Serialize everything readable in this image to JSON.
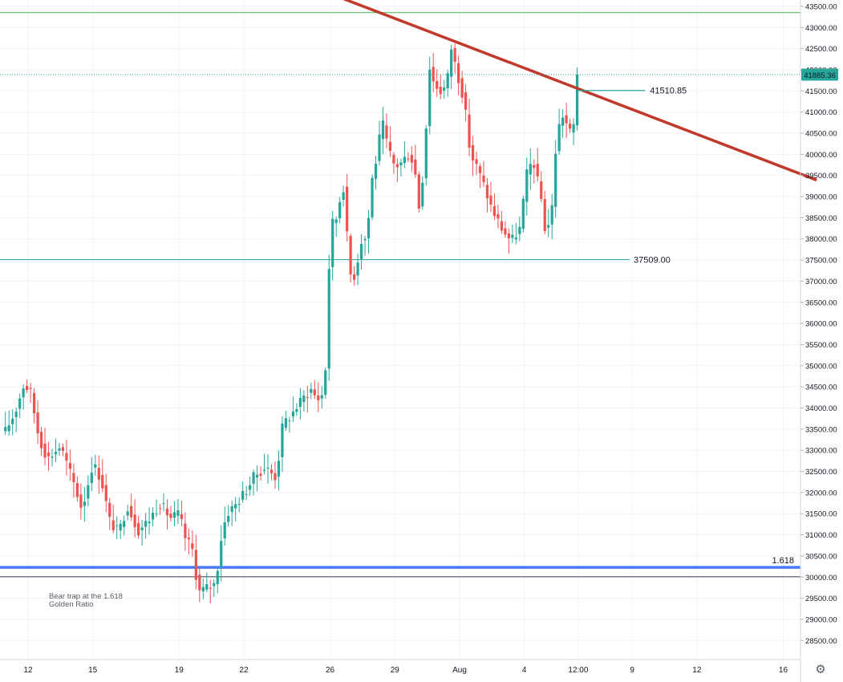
{
  "chart_data": {
    "type": "candlestick",
    "title": "",
    "xlabel": "",
    "ylabel": "",
    "ylim": [
      28050,
      43650
    ],
    "y_ticks": [
      "43500.00",
      "43000.00",
      "42500.00",
      "42000.00",
      "41500.00",
      "41000.00",
      "40500.00",
      "40000.00",
      "39500.00",
      "39000.00",
      "38500.00",
      "38000.00",
      "37500.00",
      "37000.00",
      "36500.00",
      "36000.00",
      "35500.00",
      "35000.00",
      "34500.00",
      "34000.00",
      "33500.00",
      "33000.00",
      "32500.00",
      "32000.00",
      "31500.00",
      "31000.00",
      "30500.00",
      "30000.00",
      "29500.00",
      "29000.00",
      "28500.00"
    ],
    "x_ticks": [
      {
        "label": "12",
        "day": 12
      },
      {
        "label": "15",
        "day": 15
      },
      {
        "label": "19",
        "day": 19
      },
      {
        "label": "22",
        "day": 22
      },
      {
        "label": "26",
        "day": 26
      },
      {
        "label": "29",
        "day": 29
      },
      {
        "label": "Aug",
        "day": 32
      },
      {
        "label": "4",
        "day": 35
      },
      {
        "label": "12:00",
        "day": 37.5
      },
      {
        "label": "9",
        "day": 40
      },
      {
        "label": "12",
        "day": 43
      },
      {
        "label": "16",
        "day": 47
      }
    ],
    "candle_interval_hours": 4,
    "anchors": [
      {
        "day": 10.95,
        "price": 33450
      },
      {
        "day": 11.4,
        "price": 33900
      },
      {
        "day": 11.8,
        "price": 34550
      },
      {
        "day": 12.1,
        "price": 34400
      },
      {
        "day": 12.5,
        "price": 33300
      },
      {
        "day": 12.9,
        "price": 32800
      },
      {
        "day": 13.5,
        "price": 33100
      },
      {
        "day": 14.1,
        "price": 32250
      },
      {
        "day": 14.5,
        "price": 31600
      },
      {
        "day": 15.0,
        "price": 32700
      },
      {
        "day": 15.4,
        "price": 32300
      },
      {
        "day": 15.8,
        "price": 31300
      },
      {
        "day": 16.2,
        "price": 31050
      },
      {
        "day": 16.6,
        "price": 31700
      },
      {
        "day": 17.1,
        "price": 31100
      },
      {
        "day": 17.6,
        "price": 31350
      },
      {
        "day": 18.1,
        "price": 31750
      },
      {
        "day": 18.6,
        "price": 31400
      },
      {
        "day": 19.0,
        "price": 31500
      },
      {
        "day": 19.3,
        "price": 30900
      },
      {
        "day": 19.6,
        "price": 30700
      },
      {
        "day": 19.9,
        "price": 29650
      },
      {
        "day": 20.3,
        "price": 29750
      },
      {
        "day": 20.7,
        "price": 29850
      },
      {
        "day": 20.9,
        "price": 30800
      },
      {
        "day": 21.2,
        "price": 31500
      },
      {
        "day": 21.6,
        "price": 31700
      },
      {
        "day": 22.1,
        "price": 32050
      },
      {
        "day": 22.5,
        "price": 32400
      },
      {
        "day": 23.0,
        "price": 32600
      },
      {
        "day": 23.5,
        "price": 32350
      },
      {
        "day": 23.8,
        "price": 33600
      },
      {
        "day": 24.2,
        "price": 33850
      },
      {
        "day": 24.7,
        "price": 34200
      },
      {
        "day": 25.1,
        "price": 34450
      },
      {
        "day": 25.4,
        "price": 34200
      },
      {
        "day": 25.7,
        "price": 34350
      },
      {
        "day": 25.85,
        "price": 35400
      },
      {
        "day": 26.0,
        "price": 38300
      },
      {
        "day": 26.3,
        "price": 38500
      },
      {
        "day": 26.6,
        "price": 39350
      },
      {
        "day": 26.8,
        "price": 37950
      },
      {
        "day": 27.0,
        "price": 36900
      },
      {
        "day": 27.2,
        "price": 37300
      },
      {
        "day": 27.5,
        "price": 38100
      },
      {
        "day": 27.7,
        "price": 37950
      },
      {
        "day": 27.9,
        "price": 39300
      },
      {
        "day": 28.2,
        "price": 40050
      },
      {
        "day": 28.4,
        "price": 40800
      },
      {
        "day": 28.7,
        "price": 40100
      },
      {
        "day": 29.0,
        "price": 39700
      },
      {
        "day": 29.3,
        "price": 39800
      },
      {
        "day": 29.6,
        "price": 40000
      },
      {
        "day": 29.9,
        "price": 39800
      },
      {
        "day": 30.1,
        "price": 38700
      },
      {
        "day": 30.4,
        "price": 39900
      },
      {
        "day": 30.55,
        "price": 42200
      },
      {
        "day": 30.8,
        "price": 41700
      },
      {
        "day": 31.1,
        "price": 41500
      },
      {
        "day": 31.4,
        "price": 41600
      },
      {
        "day": 31.6,
        "price": 42550
      },
      {
        "day": 31.9,
        "price": 41900
      },
      {
        "day": 32.2,
        "price": 41300
      },
      {
        "day": 32.5,
        "price": 40000
      },
      {
        "day": 32.8,
        "price": 39700
      },
      {
        "day": 33.1,
        "price": 39300
      },
      {
        "day": 33.5,
        "price": 38700
      },
      {
        "day": 34.0,
        "price": 38200
      },
      {
        "day": 34.4,
        "price": 37950
      },
      {
        "day": 34.8,
        "price": 38250
      },
      {
        "day": 35.1,
        "price": 39500
      },
      {
        "day": 35.4,
        "price": 39900
      },
      {
        "day": 35.8,
        "price": 38900
      },
      {
        "day": 36.0,
        "price": 38050
      },
      {
        "day": 36.3,
        "price": 38800
      },
      {
        "day": 36.5,
        "price": 40500
      },
      {
        "day": 36.8,
        "price": 40950
      },
      {
        "day": 37.1,
        "price": 40500
      },
      {
        "day": 37.3,
        "price": 40700
      },
      {
        "day": 37.5,
        "price": 41885.36
      }
    ],
    "horizontal_levels": [
      {
        "price": 43350,
        "color": "#4caf50",
        "label": ""
      },
      {
        "price": 37509.0,
        "color": "#26a69a",
        "label": "37509.00"
      },
      {
        "price": 30230,
        "color": "#2962ff",
        "label": "1.618"
      },
      {
        "price": 30010,
        "color": "#787b86",
        "label": ""
      }
    ],
    "trendline": {
      "from": {
        "day": 26.0,
        "price": 43800
      },
      "to": {
        "day": 48.5,
        "price": 39400
      },
      "color": "#c0392b"
    },
    "measure_line": {
      "from_day": 37.5,
      "to_day": 40.6,
      "price": 41510.85,
      "label": "41510.85",
      "color": "#26a69a"
    },
    "last_price": {
      "value": 41885.36,
      "label": "41885.36",
      "color": "#26a69a"
    },
    "annotation": {
      "lines": [
        "Bear trap at the 1.618",
        "Golden Ratio"
      ],
      "day": 12.8,
      "price": 29300
    },
    "up_color": "#26a69a",
    "down_color": "#ef5350"
  }
}
